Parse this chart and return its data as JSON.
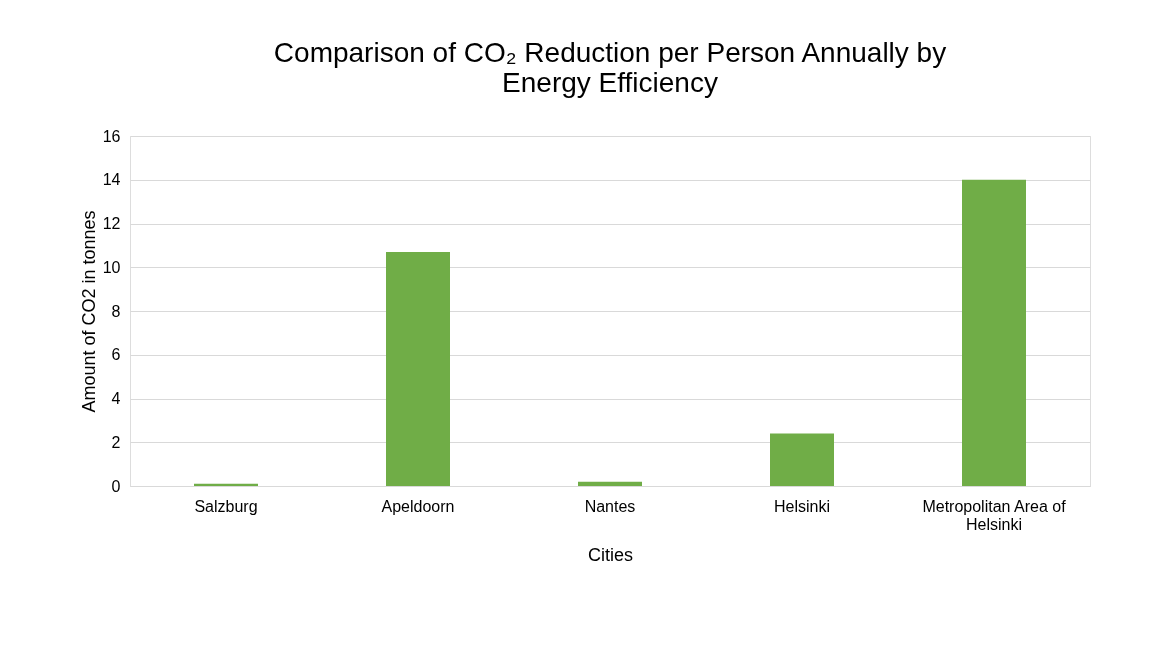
{
  "chart_data": {
    "type": "bar",
    "title": "Comparison of CO₂ Reduction per  Person Annually by\nEnergy Efficiency",
    "xlabel": "Cities",
    "ylabel": "Amount of CO2 in tonnes",
    "categories": [
      "Salzburg",
      "Apeldoorn",
      "Nantes",
      "Helsinki",
      "Metropolitan Area of Helsinki"
    ],
    "values": [
      0.1,
      10.7,
      0.2,
      2.4,
      14.0
    ],
    "color": "#70ad47",
    "ylim": [
      0,
      16
    ],
    "yticks": [
      0,
      2,
      4,
      6,
      8,
      10,
      12,
      14,
      16
    ],
    "grid": "y"
  }
}
